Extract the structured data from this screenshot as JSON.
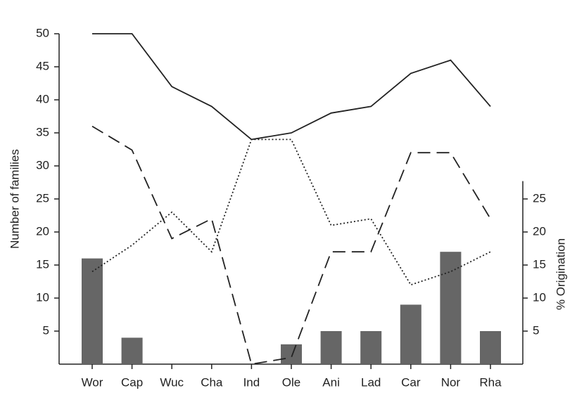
{
  "chart_data": {
    "type": "combo",
    "categories": [
      "Wor",
      "Cap",
      "Wuc",
      "Cha",
      "Ind",
      "Ole",
      "Ani",
      "Lad",
      "Car",
      "Nor",
      "Rha"
    ],
    "ylabel": "Number of families",
    "y2label": "% Origination",
    "ylim": [
      0,
      50
    ],
    "yticks": [
      5,
      10,
      15,
      20,
      25,
      30,
      35,
      40,
      45,
      50
    ],
    "y2lim": [
      0,
      27.7
    ],
    "y2ticks": [
      5,
      10,
      15,
      20,
      25
    ],
    "series": [
      {
        "type": "bar",
        "axis": "y2",
        "color": "#666666",
        "values": [
          16,
          4,
          0,
          0,
          0,
          3,
          5,
          5,
          9,
          17,
          5
        ]
      },
      {
        "type": "line",
        "style": "solid",
        "color": "#222222",
        "values": [
          50,
          50,
          42,
          39,
          34,
          35,
          38,
          39,
          44,
          46,
          39
        ]
      },
      {
        "type": "line",
        "style": "dashed",
        "color": "#222222",
        "values": [
          36,
          32.4,
          19,
          22,
          0,
          1,
          17,
          17,
          32,
          32,
          22
        ]
      },
      {
        "type": "line",
        "style": "dotted",
        "color": "#222222",
        "values": [
          14,
          18,
          23,
          17,
          34,
          34,
          21,
          22,
          12,
          14,
          17
        ]
      }
    ]
  }
}
